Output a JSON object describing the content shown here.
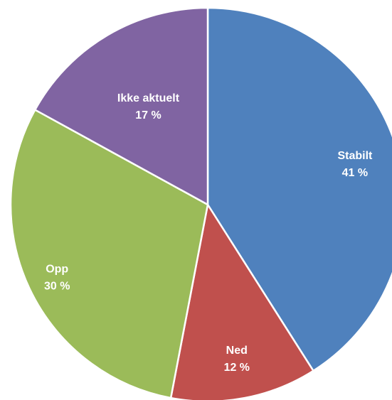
{
  "chart_data": {
    "type": "pie",
    "title": "",
    "start_angle_deg": 0,
    "direction": "clockwise",
    "legend": "none",
    "slices": [
      {
        "label": "Stabilt",
        "value": 41,
        "value_label": "41 %",
        "color": "#4F81BD"
      },
      {
        "label": "Ned",
        "value": 12,
        "value_label": "12 %",
        "color": "#C0504D"
      },
      {
        "label": "Opp",
        "value": 30,
        "value_label": "30 %",
        "color": "#9BBB59"
      },
      {
        "label": "Ikke aktuelt",
        "value": 17,
        "value_label": "17 %",
        "color": "#8064A2"
      }
    ]
  }
}
